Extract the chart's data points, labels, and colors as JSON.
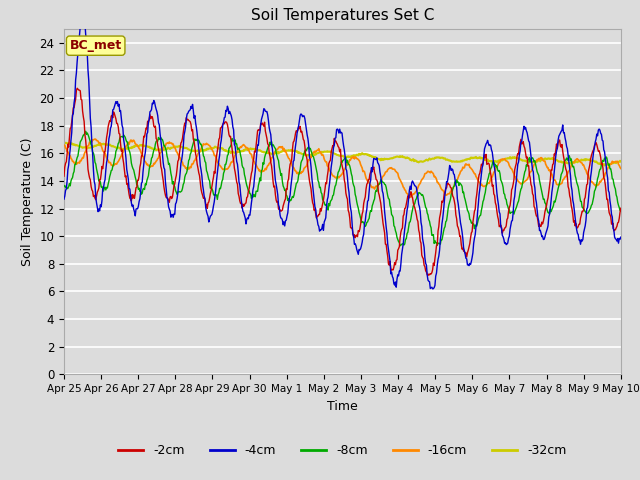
{
  "title": "Soil Temperatures Set C",
  "xlabel": "Time",
  "ylabel": "Soil Temperature (C)",
  "ylim": [
    0,
    25
  ],
  "yticks": [
    0,
    2,
    4,
    6,
    8,
    10,
    12,
    14,
    16,
    18,
    20,
    22,
    24
  ],
  "annotation": "BC_met",
  "annotation_color": "#8B0000",
  "annotation_bg": "#FFFF99",
  "background_color": "#DCDCDC",
  "grid_color": "#FFFFFF",
  "xtick_labels": [
    "Apr 25",
    "Apr 26",
    "Apr 27",
    "Apr 28",
    "Apr 29",
    "Apr 30",
    "May 1",
    "May 2",
    "May 3",
    "May 4",
    "May 5",
    "May 6",
    "May 7",
    "May 8",
    "May 9",
    "May 10"
  ],
  "n_points_per_day": 48,
  "n_days": 15,
  "legend_labels": [
    "-2cm",
    "-4cm",
    "-8cm",
    "-16cm",
    "-32cm"
  ],
  "legend_colors": [
    "#CC0000",
    "#0000CC",
    "#00AA00",
    "#FF8800",
    "#CCCC00"
  ]
}
